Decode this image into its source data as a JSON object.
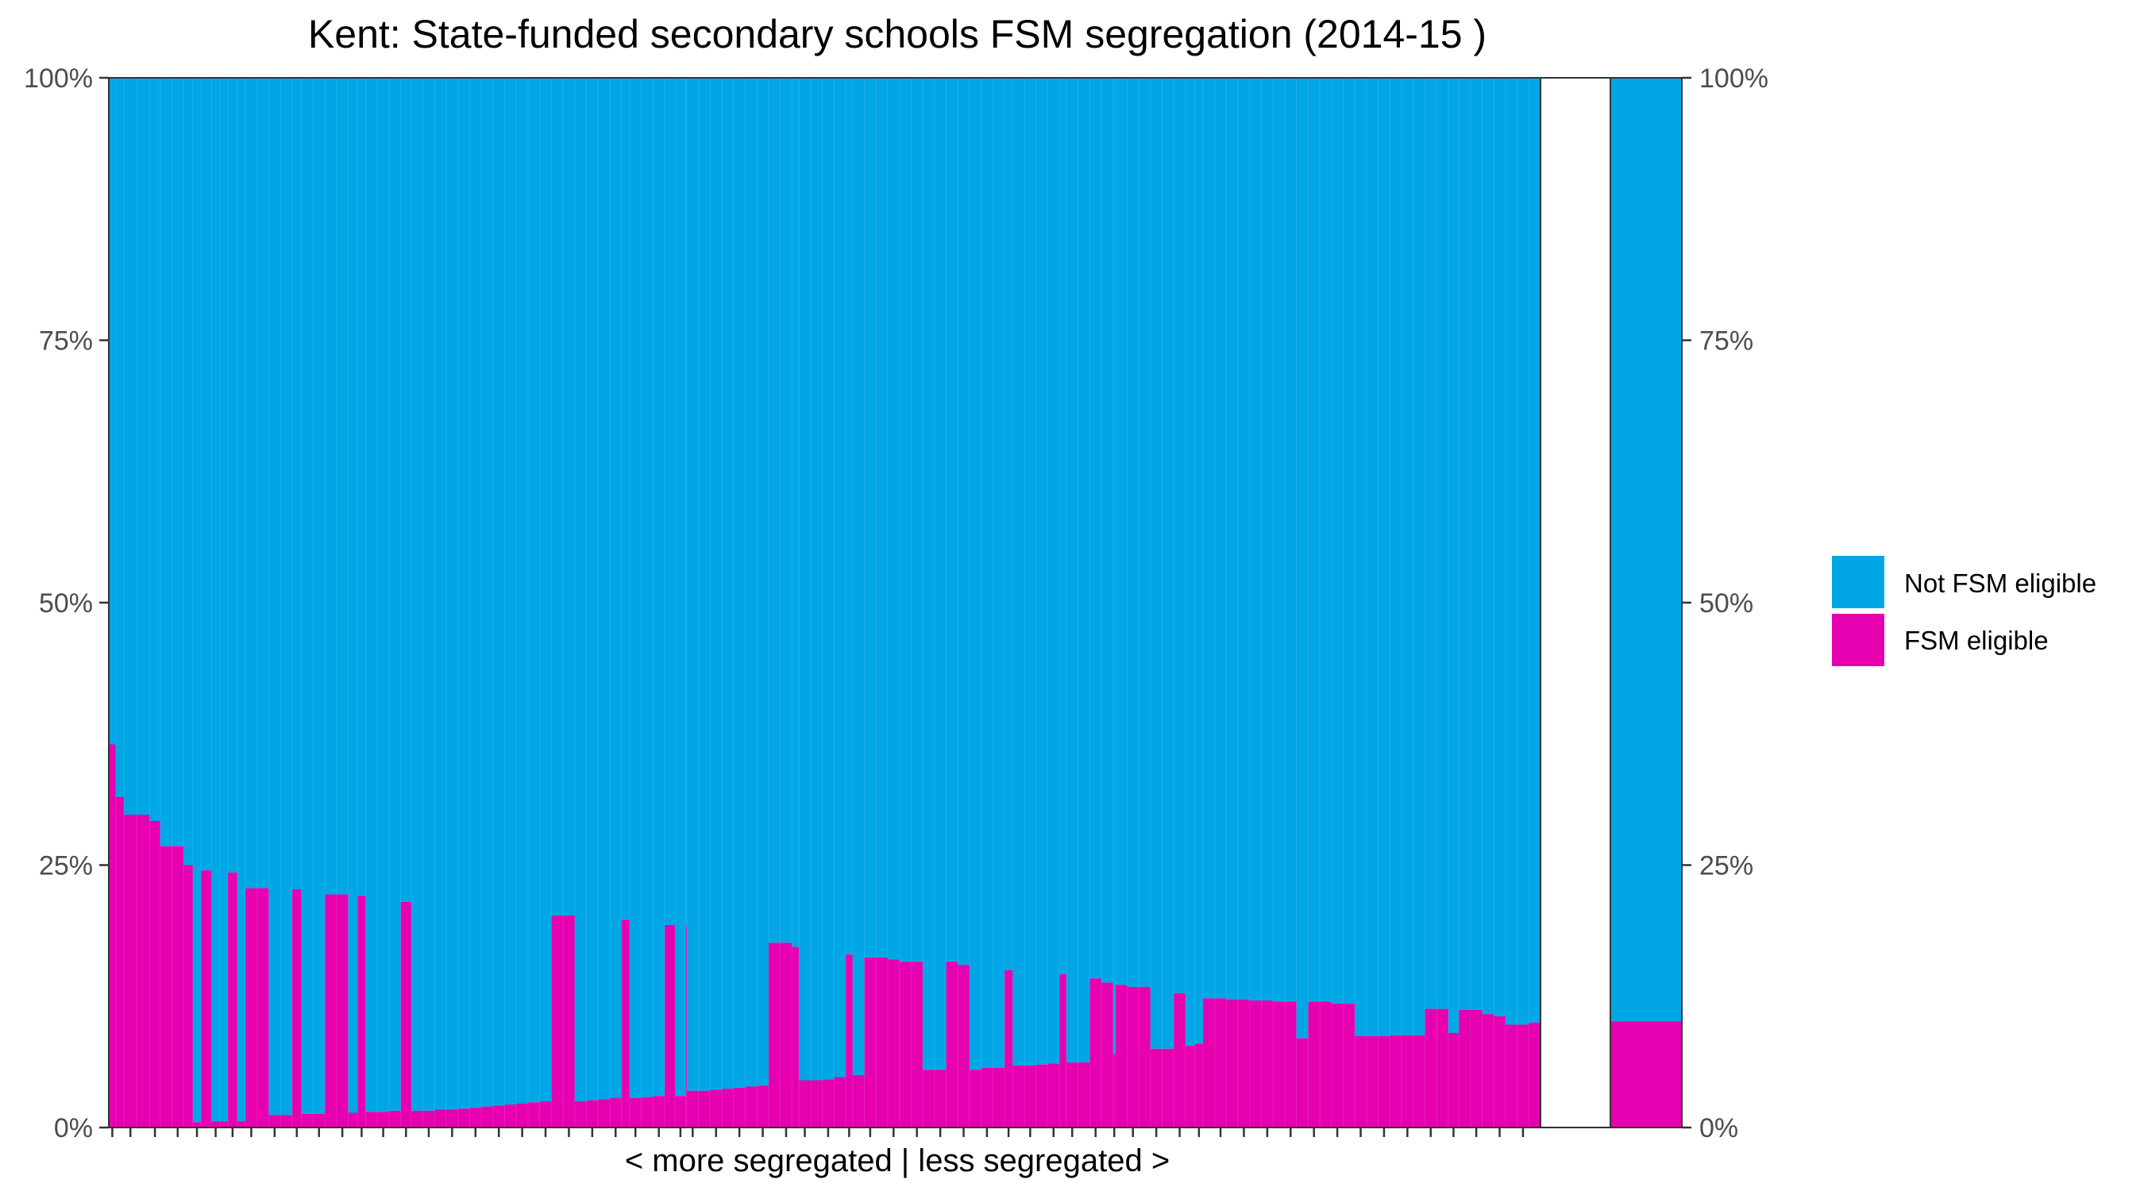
{
  "chart_data": {
    "type": "bar",
    "subtype": "stacked-percent-variable-width",
    "title": "Kent: State-funded secondary schools FSM segregation (2014-15 )",
    "xlabel": "< more segregated | less segregated >",
    "ylabel": "",
    "ylim": [
      0,
      1
    ],
    "y_ticks": [
      "0%",
      "25%",
      "50%",
      "75%",
      "100%"
    ],
    "y_tick_values": [
      0,
      0.25,
      0.5,
      0.75,
      1.0
    ],
    "secondary_y_axis": true,
    "grid": false,
    "legend_position": "right",
    "series": [
      {
        "name": "Not FSM eligible",
        "color": "#00A6E6"
      },
      {
        "name": "FSM eligible",
        "color": "#E600AF"
      }
    ],
    "schools": {
      "description": "FSM eligible share per school; width = relative pupil count",
      "fsm_share": [
        0.365,
        0.315,
        0.298,
        0.298,
        0.292,
        0.268,
        0.268,
        0.25,
        0.005,
        0.245,
        0.006,
        0.006,
        0.243,
        0.006,
        0.228,
        0.228,
        0.012,
        0.012,
        0.227,
        0.013,
        0.013,
        0.222,
        0.222,
        0.014,
        0.221,
        0.015,
        0.015,
        0.016,
        0.215,
        0.016,
        0.016,
        0.017,
        0.017,
        0.018,
        0.019,
        0.02,
        0.021,
        0.022,
        0.023,
        0.024,
        0.025,
        0.202,
        0.202,
        0.025,
        0.026,
        0.027,
        0.028,
        0.198,
        0.028,
        0.029,
        0.03,
        0.193,
        0.03,
        0.192,
        0.035,
        0.035,
        0.036,
        0.037,
        0.038,
        0.039,
        0.04,
        0.176,
        0.176,
        0.172,
        0.045,
        0.045,
        0.046,
        0.048,
        0.165,
        0.05,
        0.162,
        0.162,
        0.16,
        0.158,
        0.158,
        0.055,
        0.055,
        0.158,
        0.155,
        0.055,
        0.057,
        0.057,
        0.15,
        0.059,
        0.059,
        0.06,
        0.061,
        0.146,
        0.062,
        0.062,
        0.142,
        0.138,
        0.07,
        0.136,
        0.134,
        0.134,
        0.075,
        0.075,
        0.128,
        0.078,
        0.08,
        0.123,
        0.123,
        0.122,
        0.122,
        0.121,
        0.121,
        0.12,
        0.12,
        0.085,
        0.12,
        0.12,
        0.118,
        0.118,
        0.087,
        0.087,
        0.087,
        0.088,
        0.088,
        0.088,
        0.113,
        0.113,
        0.09,
        0.112,
        0.112,
        0.108,
        0.106,
        0.098,
        0.098,
        0.1
      ],
      "weights": [
        0.6,
        0.7,
        1.1,
        1.1,
        0.9,
        1.0,
        1.0,
        0.8,
        0.7,
        0.9,
        0.7,
        0.7,
        0.8,
        0.7,
        1.0,
        1.0,
        1.0,
        1.0,
        0.8,
        1.0,
        1.0,
        1.0,
        1.0,
        0.8,
        0.7,
        1.0,
        1.0,
        1.0,
        0.9,
        1.0,
        1.0,
        1.0,
        1.0,
        1.0,
        1.0,
        1.0,
        1.0,
        1.0,
        1.0,
        1.0,
        1.0,
        1.0,
        1.0,
        1.0,
        1.0,
        1.0,
        1.0,
        0.7,
        1.0,
        1.0,
        1.0,
        0.9,
        0.9,
        0.1,
        1.0,
        1.0,
        1.0,
        1.0,
        1.0,
        1.0,
        1.0,
        1.0,
        1.0,
        0.6,
        1.0,
        1.0,
        1.0,
        1.0,
        0.6,
        1.0,
        1.0,
        1.0,
        1.0,
        1.0,
        1.0,
        1.0,
        1.0,
        1.0,
        1.0,
        1.0,
        1.0,
        1.0,
        0.7,
        1.0,
        1.0,
        1.0,
        1.0,
        0.6,
        1.0,
        1.0,
        1.0,
        1.0,
        0.2,
        1.0,
        1.0,
        1.0,
        1.0,
        1.0,
        1.0,
        0.8,
        0.7,
        1.0,
        1.0,
        1.0,
        1.0,
        1.0,
        1.0,
        1.0,
        1.0,
        1.0,
        1.0,
        1.0,
        1.0,
        1.0,
        1.0,
        1.0,
        1.0,
        1.0,
        1.0,
        1.0,
        1.0,
        1.0,
        0.9,
        1.0,
        1.0,
        1.0,
        1.0,
        1.0,
        1.0,
        1.0
      ]
    },
    "overall": {
      "fsm_share": 0.101
    }
  }
}
